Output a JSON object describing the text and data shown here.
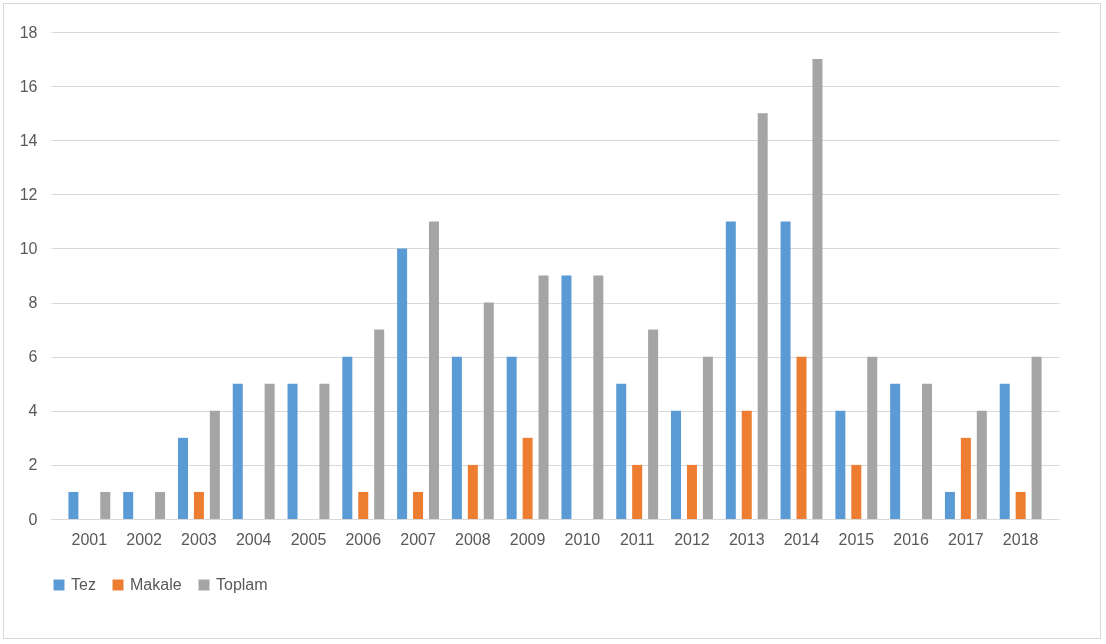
{
  "chart_data": {
    "type": "bar",
    "categories": [
      "2001",
      "2002",
      "2003",
      "2004",
      "2005",
      "2006",
      "2007",
      "2008",
      "2009",
      "2010",
      "2011",
      "2012",
      "2013",
      "2014",
      "2015",
      "2016",
      "2017",
      "2018"
    ],
    "series": [
      {
        "name": "Tez",
        "color": "#5b9bd5",
        "values": [
          1,
          1,
          3,
          5,
          5,
          6,
          10,
          6,
          6,
          9,
          5,
          4,
          11,
          11,
          4,
          5,
          1,
          5
        ]
      },
      {
        "name": "Makale",
        "color": "#ed7d31",
        "values": [
          0,
          0,
          1,
          0,
          0,
          1,
          1,
          2,
          3,
          0,
          2,
          2,
          4,
          6,
          2,
          0,
          3,
          1
        ]
      },
      {
        "name": "Toplam",
        "color": "#a5a5a5",
        "values": [
          1,
          1,
          4,
          5,
          5,
          7,
          11,
          8,
          9,
          9,
          7,
          6,
          15,
          17,
          6,
          5,
          4,
          6
        ]
      }
    ],
    "ylim": [
      0,
      18
    ],
    "yticks": [
      0,
      2,
      4,
      6,
      8,
      10,
      12,
      14,
      16,
      18
    ],
    "grid": "y",
    "legend": "bottom"
  }
}
